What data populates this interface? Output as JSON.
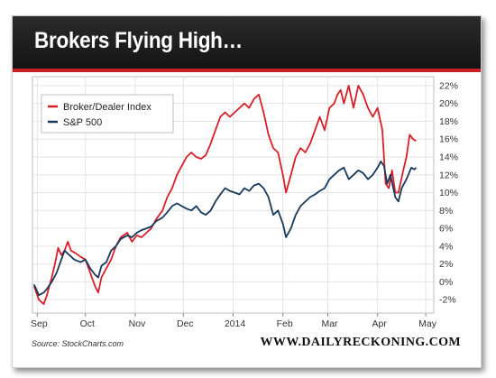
{
  "header": {
    "title": "Brokers Flying High…"
  },
  "footer": {
    "source": "Source: StockCharts.com",
    "brand": "WWW.DAILYRECKONING.COM"
  },
  "colors": {
    "broker": "#d71f2a",
    "sp500": "#173a5a",
    "title_bar": "#1c1c1c",
    "accent": "#c62026"
  },
  "chart_data": {
    "type": "line",
    "x_ticks": [
      "Sep",
      "Oct",
      "Nov",
      "Dec",
      "2014",
      "Feb",
      "Mar",
      "Apr",
      "May"
    ],
    "y_ticks": [
      "-2%",
      "0%",
      "2%",
      "4%",
      "6%",
      "8%",
      "10%",
      "12%",
      "14%",
      "16%",
      "18%",
      "20%",
      "22%"
    ],
    "ylim": [
      -3.5,
      23
    ],
    "grid": true,
    "legend_position": "top-left",
    "series": [
      {
        "name": "Broker/Dealer Index",
        "color": "#d71f2a",
        "points": [
          [
            "2013-08-30",
            -0.5
          ],
          [
            "2013-09-02",
            -2.0
          ],
          [
            "2013-09-05",
            -2.5
          ],
          [
            "2013-09-07",
            -1.5
          ],
          [
            "2013-09-10",
            0.5
          ],
          [
            "2013-09-12",
            2.0
          ],
          [
            "2013-09-14",
            3.8
          ],
          [
            "2013-09-16",
            3.0
          ],
          [
            "2013-09-18",
            3.5
          ],
          [
            "2013-09-20",
            4.5
          ],
          [
            "2013-09-22",
            3.5
          ],
          [
            "2013-09-25",
            3.2
          ],
          [
            "2013-09-28",
            2.8
          ],
          [
            "2013-10-01",
            2.5
          ],
          [
            "2013-10-04",
            1.0
          ],
          [
            "2013-10-07",
            -0.5
          ],
          [
            "2013-10-09",
            -1.2
          ],
          [
            "2013-10-11",
            0.5
          ],
          [
            "2013-10-14",
            1.5
          ],
          [
            "2013-10-17",
            2.5
          ],
          [
            "2013-10-20",
            4.0
          ],
          [
            "2013-10-23",
            5.0
          ],
          [
            "2013-10-27",
            5.5
          ],
          [
            "2013-10-30",
            4.5
          ],
          [
            "2013-11-02",
            5.2
          ],
          [
            "2013-11-05",
            5.0
          ],
          [
            "2013-11-08",
            5.5
          ],
          [
            "2013-11-11",
            6.0
          ],
          [
            "2013-11-14",
            7.0
          ],
          [
            "2013-11-18",
            8.0
          ],
          [
            "2013-11-21",
            9.5
          ],
          [
            "2013-11-24",
            10.5
          ],
          [
            "2013-11-27",
            12.0
          ],
          [
            "2013-11-30",
            13.0
          ],
          [
            "2013-12-03",
            14.0
          ],
          [
            "2013-12-06",
            14.5
          ],
          [
            "2013-12-09",
            14.0
          ],
          [
            "2013-12-12",
            13.8
          ],
          [
            "2013-12-15",
            14.2
          ],
          [
            "2013-12-18",
            15.5
          ],
          [
            "2013-12-21",
            17.0
          ],
          [
            "2013-12-24",
            18.5
          ],
          [
            "2013-12-27",
            19.0
          ],
          [
            "2013-12-30",
            18.5
          ],
          [
            "2014-01-02",
            19.0
          ],
          [
            "2014-01-05",
            19.5
          ],
          [
            "2014-01-08",
            20.0
          ],
          [
            "2014-01-11",
            19.5
          ],
          [
            "2014-01-14",
            20.5
          ],
          [
            "2014-01-17",
            21.0
          ],
          [
            "2014-01-20",
            19.0
          ],
          [
            "2014-01-23",
            16.5
          ],
          [
            "2014-01-26",
            15.0
          ],
          [
            "2014-01-29",
            14.5
          ],
          [
            "2014-02-01",
            12.0
          ],
          [
            "2014-02-03",
            10.0
          ],
          [
            "2014-02-06",
            12.0
          ],
          [
            "2014-02-09",
            14.0
          ],
          [
            "2014-02-12",
            15.0
          ],
          [
            "2014-02-15",
            14.5
          ],
          [
            "2014-02-18",
            15.5
          ],
          [
            "2014-02-21",
            17.0
          ],
          [
            "2014-02-24",
            18.5
          ],
          [
            "2014-02-27",
            17.0
          ],
          [
            "2014-03-02",
            19.5
          ],
          [
            "2014-03-05",
            20.0
          ],
          [
            "2014-03-07",
            21.0
          ],
          [
            "2014-03-09",
            21.5
          ],
          [
            "2014-03-11",
            20.0
          ],
          [
            "2014-03-14",
            22.0
          ],
          [
            "2014-03-17",
            19.5
          ],
          [
            "2014-03-20",
            22.0
          ],
          [
            "2014-03-23",
            21.0
          ],
          [
            "2014-03-26",
            19.5
          ],
          [
            "2014-03-29",
            18.5
          ],
          [
            "2014-04-01",
            19.5
          ],
          [
            "2014-04-04",
            17.0
          ],
          [
            "2014-04-06",
            11.0
          ],
          [
            "2014-04-08",
            10.5
          ],
          [
            "2014-04-10",
            12.5
          ],
          [
            "2014-04-12",
            10.0
          ],
          [
            "2014-04-14",
            10.0
          ],
          [
            "2014-04-17",
            12.5
          ],
          [
            "2014-04-19",
            14.0
          ],
          [
            "2014-04-21",
            16.5
          ],
          [
            "2014-04-23",
            16.0
          ],
          [
            "2014-04-25",
            15.8
          ]
        ]
      },
      {
        "name": "S&P 500",
        "color": "#173a5a",
        "points": [
          [
            "2013-08-30",
            -0.3
          ],
          [
            "2013-09-02",
            -1.5
          ],
          [
            "2013-09-05",
            -1.2
          ],
          [
            "2013-09-07",
            -0.8
          ],
          [
            "2013-09-10",
            0.0
          ],
          [
            "2013-09-13",
            1.0
          ],
          [
            "2013-09-15",
            2.0
          ],
          [
            "2013-09-18",
            3.5
          ],
          [
            "2013-09-21",
            3.0
          ],
          [
            "2013-09-24",
            2.5
          ],
          [
            "2013-09-28",
            2.2
          ],
          [
            "2013-10-01",
            2.5
          ],
          [
            "2013-10-04",
            1.5
          ],
          [
            "2013-10-07",
            0.8
          ],
          [
            "2013-10-09",
            0.5
          ],
          [
            "2013-10-11",
            1.8
          ],
          [
            "2013-10-14",
            2.2
          ],
          [
            "2013-10-17",
            3.5
          ],
          [
            "2013-10-20",
            4.0
          ],
          [
            "2013-10-23",
            4.8
          ],
          [
            "2013-10-27",
            5.2
          ],
          [
            "2013-10-30",
            5.0
          ],
          [
            "2013-11-02",
            5.5
          ],
          [
            "2013-11-05",
            5.8
          ],
          [
            "2013-11-08",
            6.0
          ],
          [
            "2013-11-11",
            6.2
          ],
          [
            "2013-11-14",
            6.8
          ],
          [
            "2013-11-18",
            7.2
          ],
          [
            "2013-11-21",
            7.8
          ],
          [
            "2013-11-24",
            8.5
          ],
          [
            "2013-11-27",
            8.8
          ],
          [
            "2013-11-30",
            8.5
          ],
          [
            "2013-12-03",
            8.2
          ],
          [
            "2013-12-06",
            8.0
          ],
          [
            "2013-12-09",
            8.5
          ],
          [
            "2013-12-12",
            7.8
          ],
          [
            "2013-12-15",
            7.5
          ],
          [
            "2013-12-18",
            8.0
          ],
          [
            "2013-12-21",
            9.0
          ],
          [
            "2013-12-24",
            9.8
          ],
          [
            "2013-12-27",
            10.5
          ],
          [
            "2013-12-30",
            10.2
          ],
          [
            "2014-01-02",
            10.0
          ],
          [
            "2014-01-05",
            9.8
          ],
          [
            "2014-01-08",
            10.5
          ],
          [
            "2014-01-11",
            10.2
          ],
          [
            "2014-01-14",
            10.8
          ],
          [
            "2014-01-17",
            11.0
          ],
          [
            "2014-01-20",
            10.5
          ],
          [
            "2014-01-23",
            9.5
          ],
          [
            "2014-01-26",
            7.5
          ],
          [
            "2014-01-29",
            8.0
          ],
          [
            "2014-02-01",
            6.5
          ],
          [
            "2014-02-03",
            5.0
          ],
          [
            "2014-02-06",
            6.0
          ],
          [
            "2014-02-09",
            7.5
          ],
          [
            "2014-02-12",
            8.5
          ],
          [
            "2014-02-15",
            9.0
          ],
          [
            "2014-02-18",
            9.5
          ],
          [
            "2014-02-21",
            9.8
          ],
          [
            "2014-02-24",
            10.2
          ],
          [
            "2014-02-27",
            10.5
          ],
          [
            "2014-03-02",
            11.5
          ],
          [
            "2014-03-05",
            12.0
          ],
          [
            "2014-03-08",
            12.5
          ],
          [
            "2014-03-11",
            12.8
          ],
          [
            "2014-03-14",
            11.5
          ],
          [
            "2014-03-17",
            12.0
          ],
          [
            "2014-03-20",
            12.5
          ],
          [
            "2014-03-23",
            12.2
          ],
          [
            "2014-03-26",
            11.5
          ],
          [
            "2014-03-29",
            12.0
          ],
          [
            "2014-04-01",
            12.8
          ],
          [
            "2014-04-03",
            13.5
          ],
          [
            "2014-04-05",
            13.0
          ],
          [
            "2014-04-07",
            11.0
          ],
          [
            "2014-04-09",
            12.0
          ],
          [
            "2014-04-12",
            9.5
          ],
          [
            "2014-04-14",
            9.0
          ],
          [
            "2014-04-16",
            10.5
          ],
          [
            "2014-04-19",
            11.5
          ],
          [
            "2014-04-22",
            12.8
          ],
          [
            "2014-04-24",
            12.6
          ],
          [
            "2014-04-25",
            12.8
          ]
        ]
      }
    ]
  }
}
